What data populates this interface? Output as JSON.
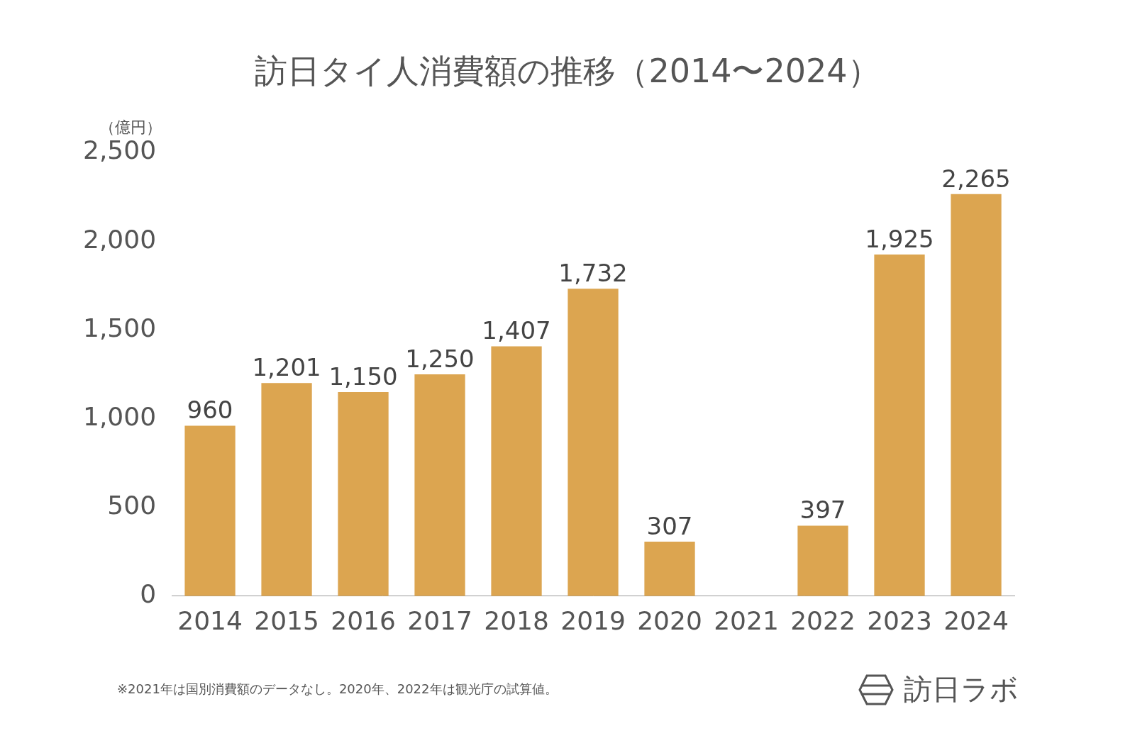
{
  "chart_data": {
    "type": "bar",
    "title": "訪日タイ人消費額の推移（2014〜2024）",
    "y_label": "（億円）",
    "footnote": "※2021年は国別消費額のデータなし。2020年、2022年は観光庁の試算値。",
    "brand": "訪日ラボ",
    "categories": [
      "2014",
      "2015",
      "2016",
      "2017",
      "2018",
      "2019",
      "2020",
      "2021",
      "2022",
      "2023",
      "2024"
    ],
    "values": [
      960,
      1201,
      1150,
      1250,
      1407,
      1732,
      307,
      null,
      397,
      1925,
      2265
    ],
    "value_labels": [
      "960",
      "1,201",
      "1,150",
      "1,250",
      "1,407",
      "1,732",
      "307",
      null,
      "397",
      "1,925",
      "2,265"
    ],
    "color": "#dca550",
    "ylim": [
      0,
      2500
    ],
    "yticks": [
      0,
      500,
      {
        "value": 1000,
        "label": "1,000"
      },
      {
        "value": 1500,
        "label": "1,500"
      },
      {
        "value": 2000,
        "label": "2,000"
      },
      {
        "value": 2500,
        "label": "2,500"
      }
    ],
    "grid": false,
    "data_labels": true
  }
}
